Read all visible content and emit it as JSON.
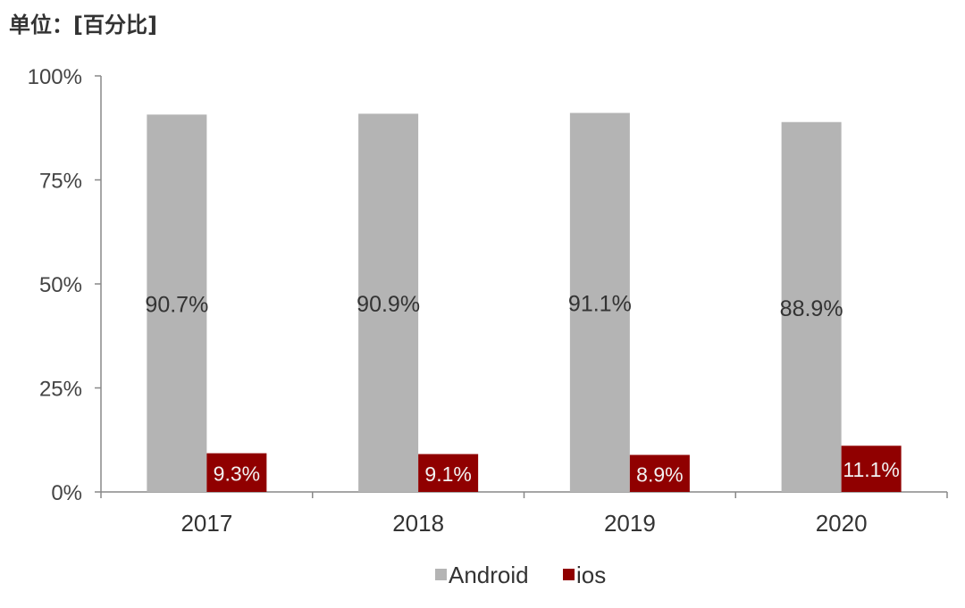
{
  "chart_data": {
    "type": "bar",
    "title": "单位：[百分比]",
    "xlabel": "",
    "ylabel": "",
    "ylim": [
      0,
      100
    ],
    "yticks": [
      "0%",
      "25%",
      "50%",
      "75%",
      "100%"
    ],
    "ytick_values": [
      0,
      25,
      50,
      75,
      100
    ],
    "categories": [
      "2017",
      "2018",
      "2019",
      "2020"
    ],
    "series": [
      {
        "name": "Android",
        "color": "#b4b4b4",
        "values": [
          90.7,
          90.9,
          91.1,
          88.9
        ],
        "labels": [
          "90.7%",
          "90.9%",
          "91.1%",
          "88.9%"
        ]
      },
      {
        "name": "ios",
        "color": "#900000",
        "values": [
          9.3,
          9.1,
          8.9,
          11.1
        ],
        "labels": [
          "9.3%",
          "9.1%",
          "8.9%",
          "11.1%"
        ]
      }
    ],
    "legend": "bottom",
    "grid": false
  }
}
